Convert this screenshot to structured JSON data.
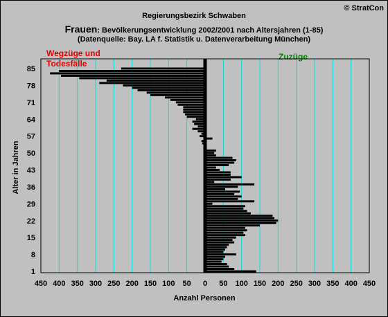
{
  "copyright": "© StratCon",
  "title_line1": "Regierungsbezirk Schwaben",
  "title_line2_big": "Frauen",
  "title_line2_rest": ": Bevölkerungsentwicklung 2002/2001 nach Altersjahren (1-85)",
  "title_line3": "(Datenquelle: Bay. LA f. Statistik u. Datenverarbeitung München)",
  "left_annotation": "Wegzüge und\nTodesfälle",
  "right_annotation": "Zuzüge",
  "colors": {
    "background": "#c0c0c0",
    "bars": "#000000",
    "grid": "#00e0e0",
    "left_annotation": "#e00000",
    "right_annotation": "#008000"
  },
  "chart_data": {
    "type": "bar",
    "orientation": "horizontal",
    "xlabel": "Anzahl Personen",
    "ylabel": "Alter in Jahren",
    "xlim": [
      -450,
      450
    ],
    "ylim": [
      1,
      85
    ],
    "x_ticks": [
      -450,
      -400,
      -350,
      -300,
      -250,
      -200,
      -150,
      -100,
      -50,
      0,
      50,
      100,
      150,
      200,
      250,
      300,
      350,
      400,
      450
    ],
    "x_tick_labels": [
      "450",
      "400",
      "350",
      "300",
      "250",
      "200",
      "150",
      "100",
      "50",
      "0",
      "50",
      "100",
      "150",
      "200",
      "250",
      "300",
      "350",
      "400",
      "450"
    ],
    "y_ticks": [
      1,
      8,
      15,
      22,
      29,
      36,
      43,
      50,
      57,
      64,
      71,
      78,
      85
    ],
    "grid": true,
    "ages": [
      1,
      2,
      3,
      4,
      5,
      6,
      7,
      8,
      9,
      10,
      11,
      12,
      13,
      14,
      15,
      16,
      17,
      18,
      19,
      20,
      21,
      22,
      23,
      24,
      25,
      26,
      27,
      28,
      29,
      30,
      31,
      32,
      33,
      34,
      35,
      36,
      37,
      38,
      39,
      40,
      41,
      42,
      43,
      44,
      45,
      46,
      47,
      48,
      49,
      50,
      51,
      52,
      53,
      54,
      55,
      56,
      57,
      58,
      59,
      60,
      61,
      62,
      63,
      64,
      65,
      66,
      67,
      68,
      69,
      70,
      71,
      72,
      73,
      74,
      75,
      76,
      77,
      78,
      79,
      80,
      81,
      82,
      83,
      84,
      85
    ],
    "values": [
      140,
      80,
      65,
      60,
      45,
      50,
      55,
      85,
      50,
      55,
      60,
      65,
      80,
      75,
      85,
      110,
      105,
      115,
      110,
      150,
      195,
      200,
      190,
      185,
      125,
      115,
      105,
      110,
      20,
      135,
      90,
      100,
      80,
      95,
      55,
      90,
      135,
      25,
      70,
      100,
      70,
      70,
      40,
      30,
      65,
      80,
      85,
      75,
      30,
      25,
      30,
      4,
      -4,
      -8,
      -10,
      20,
      -15,
      -10,
      -20,
      -35,
      -20,
      -30,
      -35,
      -25,
      -50,
      -55,
      -60,
      -60,
      -60,
      -75,
      -80,
      -95,
      -110,
      -150,
      -160,
      -185,
      -200,
      -225,
      -290,
      -270,
      -345,
      -395,
      -425,
      -400,
      -230
    ]
  }
}
